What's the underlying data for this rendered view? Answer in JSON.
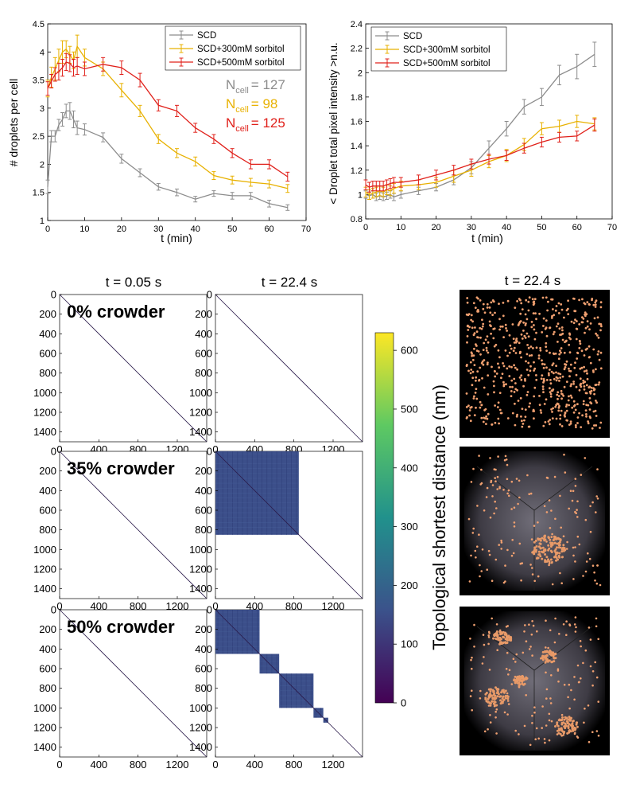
{
  "colors": {
    "SCD": "#8c8c8c",
    "SCD+300mM sorbitol": "#e8b100",
    "SCD+500mM sorbitol": "#e0201a",
    "colormap": [
      "#440154",
      "#3b528b",
      "#21918c",
      "#5ec962",
      "#fde725"
    ]
  },
  "chart_data": [
    {
      "type": "line",
      "ylabel": "# droplets per cell",
      "xlabel": "t (min)",
      "xlim": [
        0,
        70
      ],
      "ylim": [
        1,
        4.5
      ],
      "xticks": [
        "0",
        "10",
        "20",
        "30",
        "40",
        "50",
        "60",
        "70"
      ],
      "yticks": [
        "1",
        "1.5",
        "2",
        "2.5",
        "3",
        "3.5",
        "4",
        "4.5"
      ],
      "legend": [
        "SCD",
        "SCD+300mM sorbitol",
        "SCD+500mM sorbitol"
      ],
      "annotations": [
        {
          "text": "N",
          "sub": "cell",
          "value": "= 127",
          "series": "SCD"
        },
        {
          "text": "N",
          "sub": "cell",
          "value": "= 98",
          "series": "SCD+300mM sorbitol"
        },
        {
          "text": "N",
          "sub": "cell",
          "value": "= 125",
          "series": "SCD+500mM sorbitol"
        }
      ],
      "series": [
        {
          "name": "SCD",
          "x": [
            0,
            1,
            2,
            3,
            4,
            5,
            6,
            7,
            8,
            10,
            15,
            20,
            25,
            30,
            35,
            40,
            45,
            50,
            55,
            60,
            65
          ],
          "y": [
            1.6,
            2.5,
            2.5,
            2.7,
            2.8,
            2.95,
            2.95,
            2.8,
            2.65,
            2.62,
            2.48,
            2.1,
            1.85,
            1.6,
            1.5,
            1.38,
            1.48,
            1.44,
            1.44,
            1.3,
            1.23
          ],
          "err": [
            0.12,
            0.1,
            0.1,
            0.1,
            0.12,
            0.12,
            0.15,
            0.15,
            0.12,
            0.1,
            0.08,
            0.08,
            0.07,
            0.06,
            0.06,
            0.05,
            0.05,
            0.06,
            0.06,
            0.06,
            0.05
          ]
        },
        {
          "name": "SCD+300mM sorbitol",
          "x": [
            0,
            1,
            2,
            3,
            4,
            5,
            6,
            7,
            8,
            10,
            15,
            20,
            25,
            30,
            35,
            40,
            45,
            50,
            55,
            60,
            65
          ],
          "y": [
            3.35,
            3.55,
            3.7,
            3.85,
            4.0,
            4.05,
            3.95,
            3.85,
            4.1,
            3.9,
            3.7,
            3.32,
            2.95,
            2.45,
            2.2,
            2.05,
            1.8,
            1.72,
            1.68,
            1.65,
            1.57
          ],
          "err": [
            0.15,
            0.18,
            0.2,
            0.2,
            0.2,
            0.15,
            0.15,
            0.15,
            0.2,
            0.15,
            0.12,
            0.12,
            0.1,
            0.08,
            0.08,
            0.08,
            0.07,
            0.07,
            0.07,
            0.07,
            0.07
          ]
        },
        {
          "name": "SCD+500mM sorbitol",
          "x": [
            0,
            1,
            2,
            3,
            4,
            5,
            6,
            7,
            8,
            10,
            15,
            20,
            25,
            30,
            35,
            40,
            45,
            50,
            55,
            60,
            65
          ],
          "y": [
            3.35,
            3.48,
            3.6,
            3.65,
            3.72,
            3.82,
            3.8,
            3.72,
            3.75,
            3.7,
            3.78,
            3.72,
            3.5,
            3.05,
            2.95,
            2.65,
            2.45,
            2.2,
            2.0,
            2.0,
            1.78
          ],
          "err": [
            0.12,
            0.12,
            0.12,
            0.15,
            0.15,
            0.15,
            0.15,
            0.15,
            0.15,
            0.12,
            0.12,
            0.12,
            0.12,
            0.1,
            0.1,
            0.08,
            0.08,
            0.08,
            0.08,
            0.08,
            0.08
          ]
        }
      ]
    },
    {
      "type": "line",
      "ylabel": "< Droplet total pixel intensity >n.u.",
      "xlabel": "t (min)",
      "xlim": [
        0,
        70
      ],
      "ylim": [
        0.8,
        2.4
      ],
      "xticks": [
        "0",
        "10",
        "20",
        "30",
        "40",
        "50",
        "60",
        "70"
      ],
      "yticks": [
        "0.8",
        "1",
        "1.2",
        "1.4",
        "1.6",
        "1.8",
        "2",
        "2.2",
        "2.4"
      ],
      "legend": [
        "SCD",
        "SCD+300mM sorbitol",
        "SCD+500mM sorbitol"
      ],
      "series": [
        {
          "name": "SCD",
          "x": [
            0,
            1,
            2,
            3,
            4,
            5,
            6,
            7,
            8,
            10,
            15,
            20,
            25,
            30,
            35,
            40,
            45,
            50,
            55,
            60,
            65
          ],
          "y": [
            1.0,
            0.99,
            1.0,
            0.98,
            0.99,
            0.98,
            0.99,
            1.0,
            0.98,
            1.0,
            1.03,
            1.06,
            1.12,
            1.22,
            1.38,
            1.54,
            1.72,
            1.8,
            1.98,
            2.05,
            2.15
          ],
          "err": [
            0.03,
            0.03,
            0.03,
            0.03,
            0.03,
            0.03,
            0.03,
            0.03,
            0.03,
            0.03,
            0.03,
            0.03,
            0.04,
            0.05,
            0.06,
            0.06,
            0.06,
            0.07,
            0.08,
            0.1,
            0.1
          ]
        },
        {
          "name": "SCD+300mM sorbitol",
          "x": [
            0,
            1,
            2,
            3,
            4,
            5,
            6,
            7,
            8,
            10,
            15,
            20,
            25,
            30,
            35,
            40,
            45,
            50,
            55,
            60,
            65
          ],
          "y": [
            1.02,
            1.0,
            1.01,
            1.02,
            1.03,
            1.02,
            1.04,
            1.03,
            1.05,
            1.07,
            1.08,
            1.1,
            1.15,
            1.2,
            1.27,
            1.32,
            1.41,
            1.54,
            1.56,
            1.6,
            1.58
          ],
          "err": [
            0.04,
            0.04,
            0.04,
            0.04,
            0.04,
            0.04,
            0.04,
            0.04,
            0.04,
            0.04,
            0.04,
            0.04,
            0.05,
            0.05,
            0.05,
            0.05,
            0.05,
            0.05,
            0.05,
            0.05,
            0.05
          ]
        },
        {
          "name": "SCD+500mM sorbitol",
          "x": [
            0,
            1,
            2,
            3,
            4,
            5,
            6,
            7,
            8,
            10,
            15,
            20,
            25,
            30,
            35,
            40,
            45,
            50,
            55,
            60,
            65
          ],
          "y": [
            1.08,
            1.06,
            1.07,
            1.07,
            1.07,
            1.07,
            1.08,
            1.09,
            1.1,
            1.1,
            1.12,
            1.16,
            1.2,
            1.25,
            1.29,
            1.32,
            1.38,
            1.43,
            1.47,
            1.48,
            1.57
          ],
          "err": [
            0.04,
            0.04,
            0.04,
            0.04,
            0.04,
            0.04,
            0.04,
            0.04,
            0.04,
            0.04,
            0.04,
            0.04,
            0.04,
            0.04,
            0.04,
            0.04,
            0.04,
            0.04,
            0.04,
            0.04,
            0.05
          ]
        }
      ]
    },
    {
      "type": "heatmap",
      "column_titles": [
        "t = 0.05 s",
        "t = 22.4 s"
      ],
      "row_labels": [
        "0% crowder",
        "35% crowder",
        "50% crowder"
      ],
      "axis_range": [
        0,
        1500
      ],
      "xticks": [
        "0",
        "400",
        "800",
        "1200"
      ],
      "yticks": [
        "0",
        "200",
        "400",
        "600",
        "800",
        "1000",
        "1200",
        "1400"
      ],
      "blocks": [
        {
          "row": "0% crowder",
          "time": "t = 22.4 s",
          "ranges": []
        },
        {
          "row": "35% crowder",
          "time": "t = 22.4 s",
          "ranges": [
            [
              0,
              850
            ]
          ]
        },
        {
          "row": "50% crowder",
          "time": "t = 22.4 s",
          "ranges": [
            [
              0,
              450
            ],
            [
              450,
              650
            ],
            [
              650,
              1000
            ],
            [
              1000,
              1100
            ],
            [
              1100,
              1150
            ]
          ]
        }
      ],
      "colorbar": {
        "label": "Topological shortest distance (nm)",
        "range": [
          0,
          630
        ],
        "ticks": [
          "0",
          "100",
          "200",
          "300",
          "400",
          "500",
          "600"
        ]
      }
    }
  ],
  "snapshots": {
    "title": "t = 22.4 s",
    "panels": [
      "0% crowder",
      "35% crowder",
      "50% crowder"
    ]
  }
}
